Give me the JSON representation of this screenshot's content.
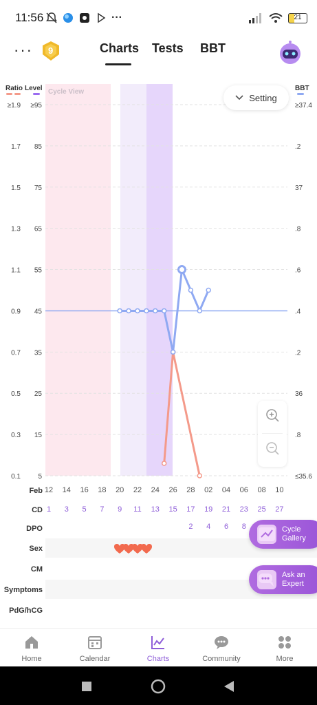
{
  "status": {
    "time": "11:56",
    "dots": "···",
    "battery": "21"
  },
  "header": {
    "menu_label": "···",
    "medal_level": "9",
    "tabs": [
      {
        "label": "Charts",
        "active": true
      },
      {
        "label": "Tests"
      },
      {
        "label": "BBT"
      }
    ]
  },
  "chart": {
    "ratio_label": "Ratio",
    "level_label": "Level",
    "bbt_label": "BBT",
    "view_label": "Cycle View",
    "setting_label": "Setting",
    "ratio_ticks": [
      "≥1.9",
      "1.7",
      "1.5",
      "1.3",
      "1.1",
      "0.9",
      "0.7",
      "0.5",
      "0.3",
      "0.1"
    ],
    "level_ticks": [
      "≥95",
      "85",
      "75",
      "65",
      "55",
      "45",
      "35",
      "25",
      "15",
      "5"
    ],
    "bbt_ticks": [
      "≥37.4",
      ".2",
      "37",
      ".8",
      ".6",
      ".4",
      ".2",
      "36",
      ".8",
      "≤35.6"
    ],
    "colors": {
      "period": "#fde8ee",
      "fertile": "#f2ecfb",
      "ovulation": "#e6d6fb",
      "bbt": "#8fa9f2",
      "lh": "#f49a8a",
      "accent": "#8e5dd8"
    }
  },
  "chart_data": {
    "type": "line",
    "x_dates": [
      "12",
      "14",
      "16",
      "18",
      "20",
      "22",
      "24",
      "26",
      "28",
      "02",
      "04",
      "06",
      "08",
      "10"
    ],
    "x_month_label": "Feb",
    "cd": [
      "1",
      "3",
      "5",
      "7",
      "9",
      "11",
      "13",
      "15",
      "17",
      "19",
      "21",
      "23",
      "25",
      "27"
    ],
    "dpo": [
      "2",
      "4",
      "6",
      "8"
    ],
    "series": [
      {
        "name": "BBT",
        "axis": "right",
        "cycle_day": [
          9,
          10,
          11,
          12,
          13,
          14,
          15,
          16,
          17,
          18,
          19
        ],
        "values": [
          36.4,
          36.4,
          36.4,
          36.4,
          36.4,
          36.4,
          36.2,
          36.6,
          36.5,
          36.4,
          36.5
        ]
      },
      {
        "name": "Ratio",
        "axis": "left",
        "cycle_day": [
          14,
          15,
          18
        ],
        "values": [
          0.16,
          0.7,
          0.1
        ]
      }
    ],
    "coverline_bbt": 36.4,
    "ylim_left": [
      0.1,
      1.9
    ],
    "ylim_right": [
      35.6,
      37.4
    ]
  },
  "rows": {
    "feb": "Feb",
    "cd": "CD",
    "dpo": "DPO",
    "sex": "Sex",
    "cm": "CM",
    "symptoms": "Symptoms",
    "pdg": "PdG/hCG"
  },
  "sex_days": [
    9,
    10,
    11,
    12
  ],
  "floating": {
    "gallery_label": "Cycle Gallery",
    "gallery_line1": "Cycle",
    "gallery_line2": "Gallery",
    "expert_line1": "Ask an",
    "expert_line2": "Expert"
  },
  "nav": [
    {
      "label": "Home",
      "icon": "home-icon"
    },
    {
      "label": "Calendar",
      "icon": "calendar-icon"
    },
    {
      "label": "Charts",
      "icon": "charts-icon",
      "active": true
    },
    {
      "label": "Community",
      "icon": "community-icon"
    },
    {
      "label": "More",
      "icon": "more-icon"
    }
  ]
}
